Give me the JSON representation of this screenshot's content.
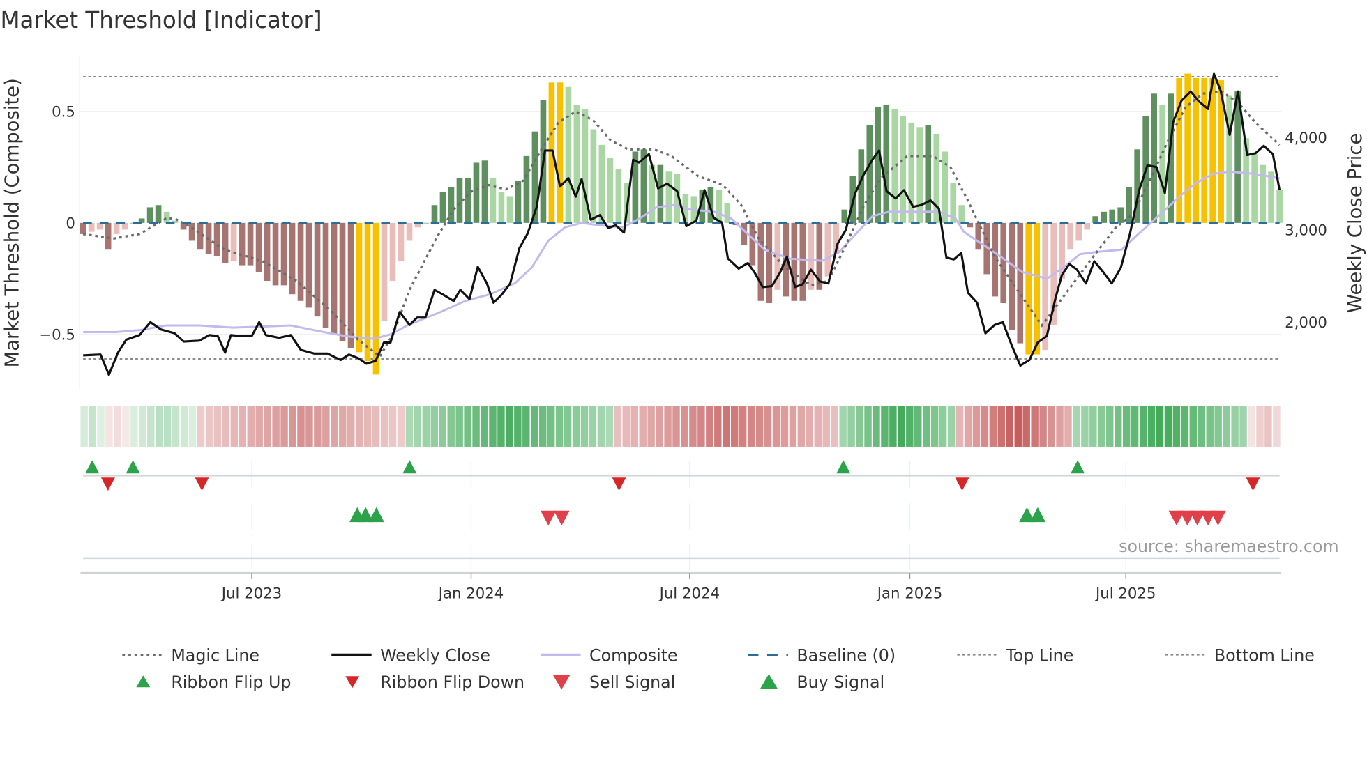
{
  "title": "Market Threshold [Indicator]",
  "source": "source: sharemaestro.com",
  "chart_data": {
    "type": "bar",
    "title": "Market Threshold [Indicator]",
    "ylabel": "Market Threshold (Composite)",
    "y2label": "Weekly Close Price",
    "ylim": [
      -0.75,
      0.746
    ],
    "y2lim": [
      1264,
      4877
    ],
    "xlim_weeks": [
      0,
      144
    ],
    "yticks": [
      {
        "v": 0.5,
        "label": "0.5"
      },
      {
        "v": 0,
        "label": "0"
      },
      {
        "v": -0.5,
        "label": "−0.5"
      }
    ],
    "y2ticks": [
      {
        "v": 4000,
        "label": "4,000"
      },
      {
        "v": 3000,
        "label": "3,000"
      },
      {
        "v": 2000,
        "label": "2,000"
      }
    ],
    "xticks": [
      {
        "w": 20.3,
        "label": "Jul 2023"
      },
      {
        "w": 46.7,
        "label": "Jan 2024"
      },
      {
        "w": 73,
        "label": "Jul 2024"
      },
      {
        "w": 99.5,
        "label": "Jan 2025"
      },
      {
        "w": 125.5,
        "label": "Jul 2025"
      }
    ],
    "top_line": 0.656,
    "bottom_line": -0.61,
    "baseline": 0,
    "grid": true,
    "composite_bars": [
      -0.05,
      -0.04,
      -0.03,
      -0.12,
      -0.05,
      -0.03,
      0.0,
      0.02,
      0.07,
      0.08,
      0.05,
      0.01,
      -0.03,
      -0.08,
      -0.12,
      -0.14,
      -0.15,
      -0.18,
      -0.17,
      -0.19,
      -0.19,
      -0.22,
      -0.26,
      -0.28,
      -0.28,
      -0.32,
      -0.35,
      -0.38,
      -0.42,
      -0.47,
      -0.5,
      -0.53,
      -0.56,
      -0.58,
      -0.62,
      -0.68,
      -0.44,
      -0.26,
      -0.17,
      -0.08,
      -0.02,
      0.0,
      0.08,
      0.14,
      0.16,
      0.2,
      0.2,
      0.27,
      0.28,
      0.2,
      0.14,
      0.12,
      0.19,
      0.3,
      0.41,
      0.55,
      0.63,
      0.63,
      0.61,
      0.53,
      0.51,
      0.42,
      0.35,
      0.29,
      0.24,
      0.18,
      0.32,
      0.33,
      0.26,
      0.26,
      0.23,
      0.22,
      0.13,
      0.12,
      0.15,
      0.16,
      0.15,
      0.09,
      -0.01,
      -0.1,
      -0.19,
      -0.35,
      -0.36,
      -0.3,
      -0.33,
      -0.35,
      -0.35,
      -0.3,
      -0.3,
      -0.24,
      -0.14,
      0.06,
      0.21,
      0.33,
      0.44,
      0.52,
      0.53,
      0.51,
      0.48,
      0.45,
      0.43,
      0.44,
      0.4,
      0.32,
      0.18,
      0.08,
      -0.02,
      -0.12,
      -0.23,
      -0.33,
      -0.36,
      -0.48,
      -0.54,
      -0.59,
      -0.59,
      -0.57,
      -0.46,
      -0.25,
      -0.12,
      -0.08,
      -0.03,
      0.03,
      0.05,
      0.06,
      0.07,
      0.16,
      0.33,
      0.48,
      0.58,
      0.53,
      0.58,
      0.65,
      0.67,
      0.65,
      0.65,
      0.65,
      0.64,
      0.57,
      0.59,
      0.38,
      0.31,
      0.26,
      0.23,
      0.15
    ],
    "weekly_close": [
      [
        0,
        1640
      ],
      [
        2.1,
        1650
      ],
      [
        3.1,
        1430
      ],
      [
        4.2,
        1670
      ],
      [
        5.2,
        1810
      ],
      [
        6.8,
        1860
      ],
      [
        8.1,
        2000
      ],
      [
        9.4,
        1920
      ],
      [
        11,
        1880
      ],
      [
        12.1,
        1790
      ],
      [
        14,
        1800
      ],
      [
        15.2,
        1860
      ],
      [
        16.2,
        1850
      ],
      [
        17.1,
        1670
      ],
      [
        17.8,
        1860
      ],
      [
        18.9,
        1850
      ],
      [
        20.3,
        1850
      ],
      [
        21.2,
        2000
      ],
      [
        22,
        1860
      ],
      [
        23.6,
        1830
      ],
      [
        25,
        1860
      ],
      [
        26.2,
        1700
      ],
      [
        27.8,
        1660
      ],
      [
        29.4,
        1660
      ],
      [
        31,
        1590
      ],
      [
        32,
        1650
      ],
      [
        33.1,
        1610
      ],
      [
        34.1,
        1550
      ],
      [
        35.2,
        1580
      ],
      [
        36.2,
        1780
      ],
      [
        37,
        1780
      ],
      [
        38.1,
        2110
      ],
      [
        39.3,
        1970
      ],
      [
        40.2,
        2050
      ],
      [
        41.2,
        2050
      ],
      [
        42.3,
        2350
      ],
      [
        43.3,
        2300
      ],
      [
        44.6,
        2230
      ],
      [
        45.4,
        2350
      ],
      [
        46.5,
        2250
      ],
      [
        47.5,
        2600
      ],
      [
        48.6,
        2420
      ],
      [
        49.4,
        2210
      ],
      [
        50.4,
        2300
      ],
      [
        51.4,
        2420
      ],
      [
        52.5,
        2800
      ],
      [
        53.5,
        2960
      ],
      [
        54.6,
        3250
      ],
      [
        55.6,
        3860
      ],
      [
        56.5,
        3860
      ],
      [
        57.4,
        3470
      ],
      [
        58.4,
        3560
      ],
      [
        59.3,
        3360
      ],
      [
        60,
        3550
      ],
      [
        61.1,
        3110
      ],
      [
        62.2,
        3160
      ],
      [
        63.2,
        3020
      ],
      [
        64.1,
        3050
      ],
      [
        65.1,
        2970
      ],
      [
        66.2,
        3760
      ],
      [
        66.9,
        3730
      ],
      [
        68.1,
        3820
      ],
      [
        69.2,
        3450
      ],
      [
        70.3,
        3500
      ],
      [
        71.5,
        3420
      ],
      [
        72.6,
        3040
      ],
      [
        73.8,
        3100
      ],
      [
        74.8,
        3430
      ],
      [
        75.9,
        3130
      ],
      [
        76.9,
        3080
      ],
      [
        77.6,
        2690
      ],
      [
        78.9,
        2580
      ],
      [
        80,
        2640
      ],
      [
        80.8,
        2540
      ],
      [
        81.8,
        2380
      ],
      [
        82.9,
        2390
      ],
      [
        83.9,
        2540
      ],
      [
        84.7,
        2710
      ],
      [
        85.7,
        2380
      ],
      [
        86.6,
        2410
      ],
      [
        87.6,
        2570
      ],
      [
        88.7,
        2440
      ],
      [
        89.7,
        2420
      ],
      [
        90.8,
        2850
      ],
      [
        91.8,
        3000
      ],
      [
        92.9,
        3390
      ],
      [
        93.9,
        3590
      ],
      [
        95,
        3760
      ],
      [
        95.8,
        3860
      ],
      [
        96.7,
        3420
      ],
      [
        97.8,
        3340
      ],
      [
        98.8,
        3430
      ],
      [
        99.9,
        3250
      ],
      [
        100.9,
        3270
      ],
      [
        102,
        3320
      ],
      [
        103,
        3230
      ],
      [
        103.9,
        2700
      ],
      [
        104.8,
        2680
      ],
      [
        105.7,
        2750
      ],
      [
        106.5,
        2320
      ],
      [
        107.6,
        2210
      ],
      [
        108.6,
        1880
      ],
      [
        109.7,
        1970
      ],
      [
        110.7,
        2000
      ],
      [
        111.8,
        1740
      ],
      [
        112.8,
        1530
      ],
      [
        113.9,
        1590
      ],
      [
        114.9,
        1780
      ],
      [
        116,
        1850
      ],
      [
        117,
        2250
      ],
      [
        117.8,
        2510
      ],
      [
        118.7,
        2630
      ],
      [
        119.6,
        2570
      ],
      [
        120.7,
        2420
      ],
      [
        121.7,
        2660
      ],
      [
        122.8,
        2540
      ],
      [
        123.8,
        2420
      ],
      [
        124.9,
        2590
      ],
      [
        126,
        2960
      ],
      [
        127.1,
        3430
      ],
      [
        128.1,
        3700
      ],
      [
        129.2,
        3680
      ],
      [
        130.2,
        3400
      ],
      [
        131.2,
        4170
      ],
      [
        132.2,
        4400
      ],
      [
        133.3,
        4500
      ],
      [
        134.3,
        4390
      ],
      [
        135.4,
        4310
      ],
      [
        136.1,
        4690
      ],
      [
        136.9,
        4510
      ],
      [
        138,
        4030
      ],
      [
        139,
        4500
      ],
      [
        140.1,
        3810
      ],
      [
        141.1,
        3830
      ],
      [
        142.1,
        3910
      ],
      [
        143.2,
        3820
      ],
      [
        144,
        3430
      ]
    ],
    "magic_line": [
      [
        0,
        -0.05
      ],
      [
        3.7,
        -0.07
      ],
      [
        6.8,
        -0.05
      ],
      [
        10,
        0.02
      ],
      [
        11,
        0.02
      ],
      [
        13,
        -0.02
      ],
      [
        17,
        -0.12
      ],
      [
        21.5,
        -0.17
      ],
      [
        25.7,
        -0.26
      ],
      [
        30,
        -0.4
      ],
      [
        33,
        -0.52
      ],
      [
        35.7,
        -0.6
      ],
      [
        37.3,
        -0.5
      ],
      [
        39.3,
        -0.3
      ],
      [
        42.5,
        -0.07
      ],
      [
        44.6,
        0.06
      ],
      [
        46.7,
        0.14
      ],
      [
        48.8,
        0.17
      ],
      [
        50.9,
        0.15
      ],
      [
        53,
        0.19
      ],
      [
        55,
        0.32
      ],
      [
        57.2,
        0.45
      ],
      [
        59.3,
        0.5
      ],
      [
        61.4,
        0.46
      ],
      [
        63.5,
        0.37
      ],
      [
        65.6,
        0.33
      ],
      [
        68.7,
        0.33
      ],
      [
        70.8,
        0.3
      ],
      [
        74,
        0.21
      ],
      [
        77,
        0.17
      ],
      [
        79.2,
        0.08
      ],
      [
        81.3,
        -0.07
      ],
      [
        84.5,
        -0.2
      ],
      [
        87.6,
        -0.28
      ],
      [
        89.7,
        -0.26
      ],
      [
        91.8,
        -0.1
      ],
      [
        94,
        0.08
      ],
      [
        96,
        0.2
      ],
      [
        99.2,
        0.3
      ],
      [
        102.3,
        0.3
      ],
      [
        104.4,
        0.25
      ],
      [
        106.5,
        0.1
      ],
      [
        109.7,
        -0.15
      ],
      [
        112.8,
        -0.32
      ],
      [
        115.4,
        -0.46
      ],
      [
        118,
        -0.33
      ],
      [
        121.2,
        -0.17
      ],
      [
        124.3,
        -0.02
      ],
      [
        126.4,
        0.04
      ],
      [
        128.5,
        0.2
      ],
      [
        130.6,
        0.37
      ],
      [
        132.7,
        0.52
      ],
      [
        134.8,
        0.58
      ],
      [
        137,
        0.59
      ],
      [
        139,
        0.54
      ],
      [
        141.1,
        0.45
      ],
      [
        144,
        0.35
      ]
    ],
    "composite_line": [
      [
        0,
        -0.49
      ],
      [
        4,
        -0.49
      ],
      [
        7,
        -0.48
      ],
      [
        10,
        -0.46
      ],
      [
        14,
        -0.46
      ],
      [
        18,
        -0.47
      ],
      [
        25,
        -0.46
      ],
      [
        29,
        -0.49
      ],
      [
        32,
        -0.51
      ],
      [
        35,
        -0.52
      ],
      [
        37,
        -0.5
      ],
      [
        39,
        -0.46
      ],
      [
        43,
        -0.4
      ],
      [
        46,
        -0.35
      ],
      [
        49,
        -0.32
      ],
      [
        52,
        -0.27
      ],
      [
        54,
        -0.2
      ],
      [
        56,
        -0.08
      ],
      [
        58,
        -0.02
      ],
      [
        60,
        0
      ],
      [
        62,
        -0.01
      ],
      [
        65,
        -0.02
      ],
      [
        67,
        0.02
      ],
      [
        69,
        0.07
      ],
      [
        71,
        0.08
      ],
      [
        73,
        0.06
      ],
      [
        76,
        0.05
      ],
      [
        78,
        0.02
      ],
      [
        80,
        -0.05
      ],
      [
        82,
        -0.12
      ],
      [
        85,
        -0.16
      ],
      [
        89,
        -0.17
      ],
      [
        91,
        -0.13
      ],
      [
        93,
        -0.05
      ],
      [
        95,
        0.03
      ],
      [
        97,
        0.05
      ],
      [
        100,
        0.05
      ],
      [
        103,
        0.05
      ],
      [
        105,
        0.02
      ],
      [
        106,
        -0.04
      ],
      [
        110,
        -0.14
      ],
      [
        113,
        -0.22
      ],
      [
        116,
        -0.25
      ],
      [
        118,
        -0.2
      ],
      [
        120,
        -0.14
      ],
      [
        122,
        -0.13
      ],
      [
        125,
        -0.12
      ],
      [
        127,
        -0.05
      ],
      [
        130,
        0.05
      ],
      [
        132,
        0.12
      ],
      [
        134,
        0.18
      ],
      [
        136,
        0.22
      ],
      [
        138,
        0.23
      ],
      [
        141,
        0.22
      ],
      [
        144,
        0.2
      ]
    ],
    "ribbon_segments": [
      [
        0,
        2.7,
        "up",
        0.3
      ],
      [
        2.7,
        6,
        "down",
        0.2
      ],
      [
        6,
        14,
        "up",
        0.35
      ],
      [
        14,
        39,
        "down",
        0.6
      ],
      [
        39,
        64,
        "up",
        0.85
      ],
      [
        64,
        91,
        "down",
        0.75
      ],
      [
        91,
        105.5,
        "up",
        0.9
      ],
      [
        105.5,
        119,
        "down",
        0.9
      ],
      [
        119,
        140.5,
        "up",
        0.9
      ],
      [
        140.5,
        144,
        "down",
        0.35
      ]
    ],
    "ribbon_flip_up": [
      1.1,
      6,
      39.3,
      91.5,
      119.7
    ],
    "ribbon_flip_down": [
      3,
      14.3,
      64.5,
      105.8,
      140.8
    ],
    "buy_signal": [
      33,
      34,
      35.3,
      113.6,
      114.9
    ],
    "sell_signal": [
      56,
      57.6,
      131.6,
      132.9,
      134.1,
      135.4,
      136.6
    ],
    "legend": {
      "magic_line": "Magic Line",
      "weekly_close": "Weekly Close",
      "composite": "Composite",
      "baseline": "Baseline (0)",
      "top_line": "Top Line",
      "bottom_line": "Bottom Line",
      "ribbon_flip_up": "Ribbon Flip Up",
      "ribbon_flip_down": "Ribbon Flip Down",
      "sell_signal": "Sell Signal",
      "buy_signal": "Buy Signal"
    },
    "legend_placement": "bottom",
    "colors": {
      "bar_up_strong": "#5e8f5e",
      "bar_up_weak": "#a9d6a3",
      "bar_down_strong": "#a67572",
      "bar_down_weak": "#e9bdb9",
      "bar_extreme": "#f7c100",
      "close": "#111111",
      "composite": "#c2baee",
      "magic": "#6b6b6b",
      "baseline": "#2b6d99",
      "threshold": "#8a8a8a",
      "signal_up": "#2ca24a",
      "signal_down": "#d62728",
      "sell": "#e0404a"
    }
  }
}
